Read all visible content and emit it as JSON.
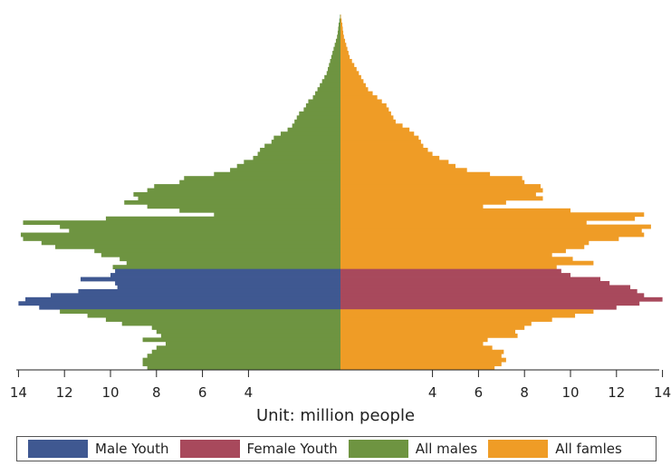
{
  "chart_data": {
    "type": "population-pyramid",
    "x_axis": {
      "range": [
        -14,
        14
      ],
      "left_ticks": [
        14,
        12,
        10,
        8,
        6,
        4
      ],
      "right_ticks": [
        4,
        6,
        8,
        10,
        12,
        14
      ]
    },
    "unit_label": "Unit: million people",
    "colors": {
      "male_youth": "#3f5891",
      "female_youth": "#a8495c",
      "all_males": "#6e9441",
      "all_females": "#ef9c26"
    },
    "legend": [
      {
        "label": "Male Youth",
        "color": "#3f5891"
      },
      {
        "label": "Female Youth",
        "color": "#a8495c"
      },
      {
        "label": "All males",
        "color": "#6e9441"
      },
      {
        "label": "All famles",
        "color": "#ef9c26"
      }
    ],
    "youth_age_range": [
      15,
      24
    ],
    "ages_oldest_first": "index 0 = oldest age cohort, last index = youngest (age 0)",
    "male": [
      0.02,
      0.05,
      0.08,
      0.1,
      0.12,
      0.15,
      0.2,
      0.25,
      0.3,
      0.35,
      0.4,
      0.45,
      0.5,
      0.55,
      0.6,
      0.7,
      0.8,
      0.9,
      1.0,
      1.1,
      1.2,
      1.4,
      1.5,
      1.6,
      1.8,
      1.9,
      2.0,
      2.1,
      2.3,
      2.6,
      2.9,
      3.0,
      3.3,
      3.5,
      3.6,
      3.8,
      4.2,
      4.5,
      4.8,
      5.5,
      6.8,
      7.0,
      8.1,
      8.4,
      9.0,
      8.8,
      9.4,
      8.4,
      7.0,
      5.5,
      10.2,
      13.8,
      12.2,
      11.8,
      13.9,
      13.8,
      13.0,
      12.4,
      10.7,
      10.4,
      9.6,
      9.3,
      9.9,
      9.8,
      10.0,
      11.3,
      9.8,
      9.7,
      11.4,
      12.6,
      13.7,
      14.0,
      13.1,
      12.2,
      11.0,
      10.2,
      9.5,
      8.2,
      8.0,
      7.8,
      8.6,
      7.6,
      8.0,
      8.2,
      8.4,
      8.6,
      8.6,
      8.4
    ],
    "female": [
      0.02,
      0.05,
      0.08,
      0.1,
      0.12,
      0.15,
      0.2,
      0.25,
      0.3,
      0.35,
      0.4,
      0.5,
      0.6,
      0.7,
      0.8,
      0.9,
      1.0,
      1.1,
      1.2,
      1.4,
      1.6,
      1.8,
      2.0,
      2.1,
      2.2,
      2.3,
      2.4,
      2.7,
      3.0,
      3.2,
      3.4,
      3.5,
      3.6,
      3.8,
      4.0,
      4.3,
      4.7,
      5.0,
      5.5,
      6.5,
      7.9,
      8.0,
      8.7,
      8.8,
      8.5,
      8.8,
      7.2,
      6.2,
      10.0,
      13.2,
      12.8,
      10.7,
      13.5,
      13.1,
      13.2,
      12.1,
      10.8,
      10.6,
      9.8,
      9.2,
      10.1,
      11.0,
      9.4,
      9.6,
      10.0,
      11.3,
      11.7,
      12.6,
      12.9,
      13.2,
      14.0,
      13.0,
      12.0,
      11.0,
      10.2,
      9.2,
      8.3,
      8.0,
      7.6,
      7.7,
      6.4,
      6.2,
      6.6,
      7.1,
      7.0,
      7.2,
      7.0,
      6.7
    ]
  }
}
